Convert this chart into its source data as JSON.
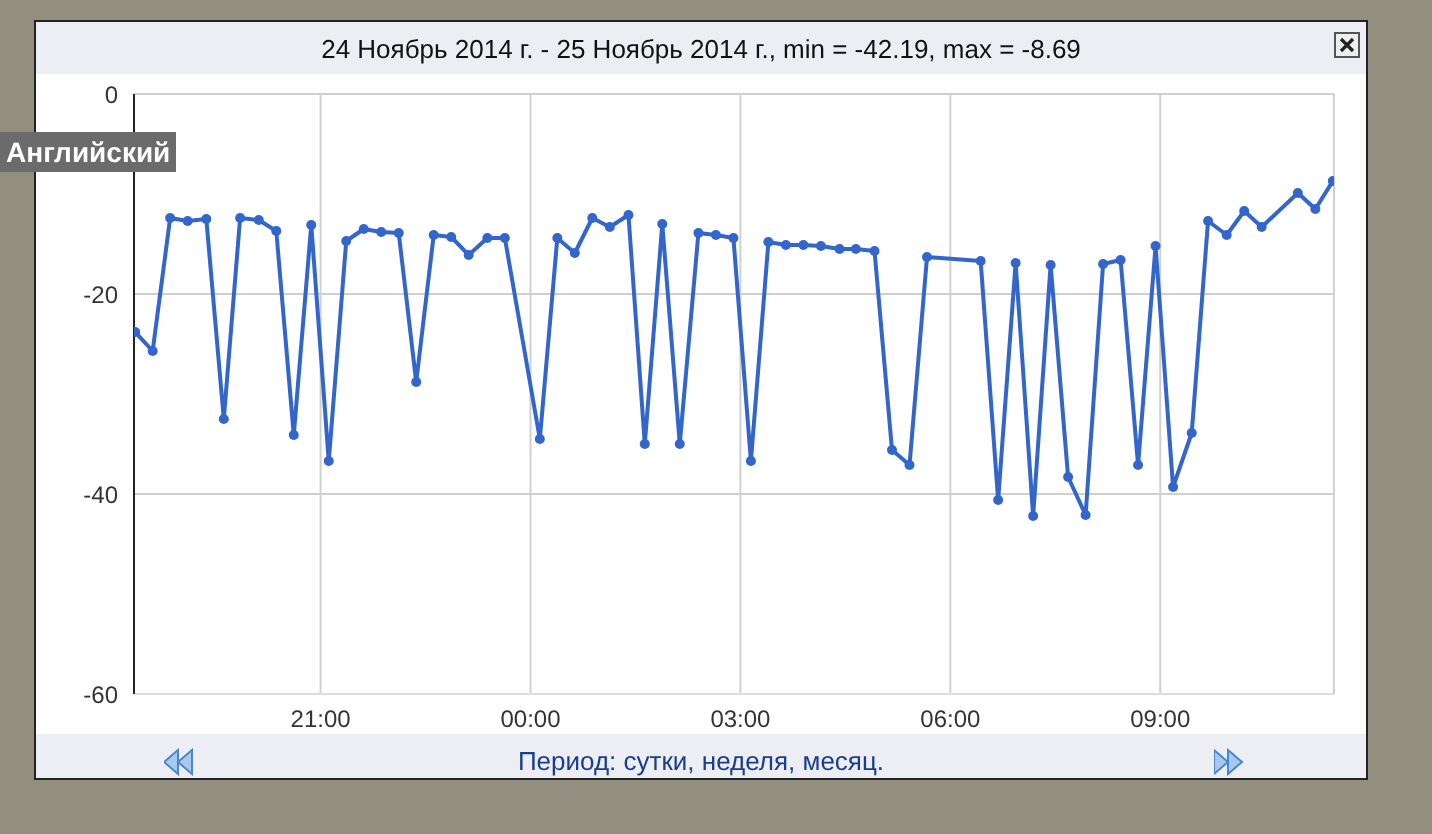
{
  "chart_data": {
    "type": "line",
    "title": "24 Ноябрь 2014 г. - 25 Ноябрь 2014 г., min = -42.19, max = -8.69",
    "annotations": [
      "Английский",
      "Период: сутки, неделя, месяц."
    ],
    "x": [
      "2014-11-24T18:21",
      "2014-11-24T18:36",
      "2014-11-24T18:51",
      "2014-11-24T19:06",
      "2014-11-24T19:22",
      "2014-11-24T19:37",
      "2014-11-24T19:51",
      "2014-11-24T20:07",
      "2014-11-24T20:22",
      "2014-11-24T20:37",
      "2014-11-24T20:52",
      "2014-11-24T21:07",
      "2014-11-24T21:22",
      "2014-11-24T21:37",
      "2014-11-24T21:52",
      "2014-11-24T22:07",
      "2014-11-24T22:22",
      "2014-11-24T22:37",
      "2014-11-24T22:52",
      "2014-11-24T23:07",
      "2014-11-24T23:23",
      "2014-11-24T23:38",
      "2014-11-25T00:08",
      "2014-11-25T00:23",
      "2014-11-25T00:38",
      "2014-11-25T00:53",
      "2014-11-25T01:08",
      "2014-11-25T01:24",
      "2014-11-25T01:38",
      "2014-11-25T01:53",
      "2014-11-25T02:08",
      "2014-11-25T02:24",
      "2014-11-25T02:39",
      "2014-11-25T02:54",
      "2014-11-25T03:09",
      "2014-11-25T03:24",
      "2014-11-25T03:39",
      "2014-11-25T03:54",
      "2014-11-25T04:09",
      "2014-11-25T04:25",
      "2014-11-25T04:39",
      "2014-11-25T04:55",
      "2014-11-25T05:10",
      "2014-11-25T05:25",
      "2014-11-25T05:40",
      "2014-11-25T06:26",
      "2014-11-25T06:41",
      "2014-11-25T06:56",
      "2014-11-25T07:11",
      "2014-11-25T07:26",
      "2014-11-25T07:41",
      "2014-11-25T07:56",
      "2014-11-25T08:11",
      "2014-11-25T08:26",
      "2014-11-25T08:41",
      "2014-11-25T08:56",
      "2014-11-25T09:11",
      "2014-11-25T09:27",
      "2014-11-25T09:41",
      "2014-11-25T09:57",
      "2014-11-25T10:12",
      "2014-11-25T10:27",
      "2014-11-25T10:58",
      "2014-11-25T11:13",
      "2014-11-25T11:28"
    ],
    "series": [
      {
        "color": "#3366cc",
        "values": [
          -23.8,
          -25.7,
          -12.4,
          -12.7,
          -12.5,
          -32.5,
          -12.4,
          -12.6,
          -13.7,
          -34.1,
          -13.1,
          -36.7,
          -14.7,
          -13.5,
          -13.8,
          -13.9,
          -28.8,
          -14.1,
          -14.3,
          -16.1,
          -14.4,
          -14.4,
          -34.5,
          -14.4,
          -15.9,
          -12.4,
          -13.3,
          -12.1,
          -35.0,
          -13.0,
          -35.0,
          -13.9,
          -14.1,
          -14.4,
          -36.7,
          -14.8,
          -15.1,
          -15.1,
          -15.2,
          -15.5,
          -15.5,
          -15.7,
          -35.6,
          -37.1,
          -16.3,
          -16.7,
          -40.6,
          -16.9,
          -42.2,
          -17.1,
          -38.3,
          -42.1,
          -17.0,
          -16.6,
          -37.1,
          -15.2,
          -39.3,
          -33.9,
          -12.7,
          -14.1,
          -11.7,
          -13.3,
          -9.9,
          -11.5,
          -8.7
        ]
      }
    ],
    "xlim": [
      "2014-11-24T18:20",
      "2014-11-25T11:29"
    ],
    "xticks": [
      {
        "value": "2014-11-24T21:00",
        "label": "21:00"
      },
      {
        "value": "2014-11-25T00:00",
        "label": "00:00"
      },
      {
        "value": "2014-11-25T03:00",
        "label": "03:00"
      },
      {
        "value": "2014-11-25T06:00",
        "label": "06:00"
      },
      {
        "value": "2014-11-25T09:00",
        "label": "09:00"
      }
    ],
    "ylim": [
      -60,
      0
    ],
    "yticks": [
      -60,
      -40,
      -20,
      0
    ],
    "grid": true,
    "marker": "circle",
    "line_style": "solid"
  }
}
